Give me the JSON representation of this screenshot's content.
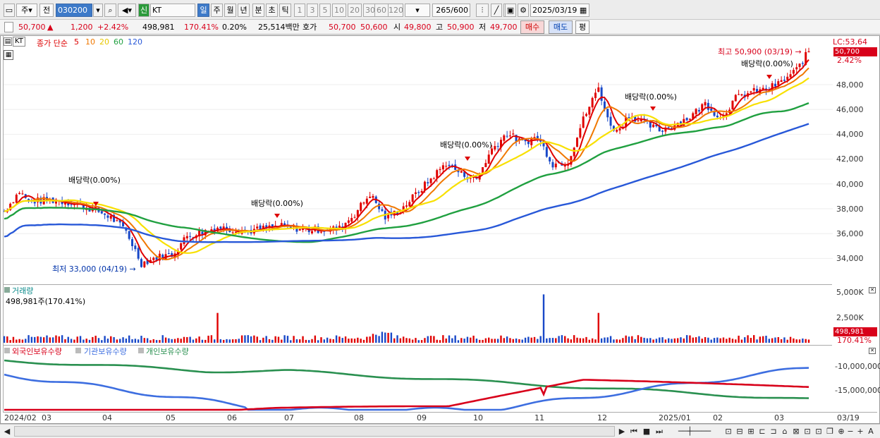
{
  "toolbar": {
    "period": "주",
    "market": "전",
    "code": "030200",
    "new_badge": "신",
    "name": "KT",
    "periods": [
      "일",
      "주",
      "월",
      "년",
      "분",
      "초",
      "틱"
    ],
    "intervals": [
      "1",
      "3",
      "5",
      "10",
      "20",
      "30",
      "60",
      "120"
    ],
    "count": "265",
    "count_total": "/600",
    "date": "2025/03/19"
  },
  "quote": {
    "price": "50,700",
    "arrow": "▲",
    "change": "1,200",
    "pct": "+2.42%",
    "volume": "498,981",
    "vol_ratio": "170.41%",
    "turnover": "0.20%",
    "amount": "25,514백만",
    "bid_ask_label": "호가",
    "ask": "50,700",
    "bid": "50,600",
    "open_label": "시",
    "open": "49,800",
    "high_label": "고",
    "high": "50,900",
    "low_label": "저",
    "low": "49,700",
    "buy_btn": "매수",
    "sell_btn": "매도",
    "eval_btn": "평"
  },
  "price_pane": {
    "ticker": "KT",
    "legend": [
      "종가 단순",
      "5",
      "10",
      "20",
      "60",
      "120"
    ],
    "annotations": {
      "high": "최고 50,900 (03/19)",
      "low": "최저 33,000 (04/19)",
      "dividend": "배당락(0.00%)"
    },
    "yticks": [
      "48,000",
      "46,000",
      "44,000",
      "42,000",
      "40,000",
      "38,000",
      "36,000",
      "34,000"
    ],
    "lc": "LC:53,64",
    "tag_price": "50,700",
    "tag_pct": "2.42%"
  },
  "volume_pane": {
    "title": "거래량",
    "info": "498,981주(170.41%)",
    "yticks": [
      "5,000K",
      "2,500K"
    ],
    "tag_value": "498,981",
    "tag_pct": "170.41%"
  },
  "investor_pane": {
    "legend": [
      "외국인보유수량",
      "기관보유수량",
      "개인보유수량"
    ],
    "yticks": [
      "-10,000,000",
      "-15,000,000"
    ]
  },
  "xaxis": {
    "labels": [
      "2024/02",
      "03",
      "04",
      "05",
      "06",
      "07",
      "08",
      "09",
      "10",
      "11",
      "12",
      "2025/01",
      "02",
      "03"
    ],
    "last": "03/19"
  },
  "colors": {
    "ma5": "#e00000",
    "ma10": "#f07800",
    "ma20": "#f8e000",
    "ma60": "#20a040",
    "ma120": "#2858d8",
    "up": "#e00000",
    "down": "#1848c8",
    "foreign": "#d8001a",
    "institution": "#3d6ee0",
    "individual": "#2a9050"
  }
}
